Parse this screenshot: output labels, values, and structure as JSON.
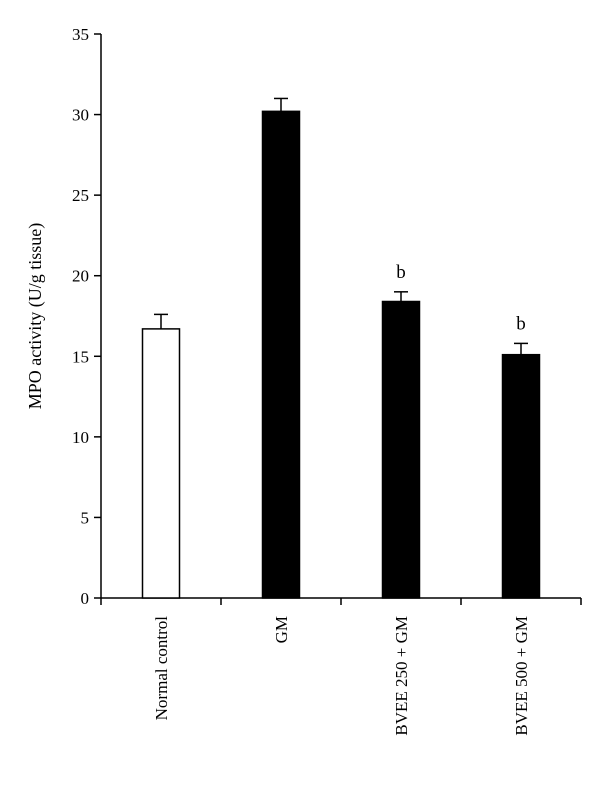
{
  "chart_data": {
    "type": "bar",
    "title": "",
    "xlabel": "",
    "ylabel": "MPO activity (U/g tissue)",
    "ylim": [
      0,
      35
    ],
    "yticks": [
      0,
      5,
      10,
      15,
      20,
      25,
      30,
      35
    ],
    "categories": [
      "Normal control",
      "GM",
      "BVEE 250 + GM",
      "BVEE 500 + GM"
    ],
    "values": [
      16.7,
      30.2,
      18.4,
      15.1
    ],
    "errors": [
      0.9,
      0.8,
      0.6,
      0.7
    ],
    "annotations": [
      "",
      "",
      "b",
      "b"
    ],
    "bar_colors": [
      "#ffffff",
      "#000000",
      "#000000",
      "#000000"
    ],
    "grid": false,
    "legend": "none"
  }
}
